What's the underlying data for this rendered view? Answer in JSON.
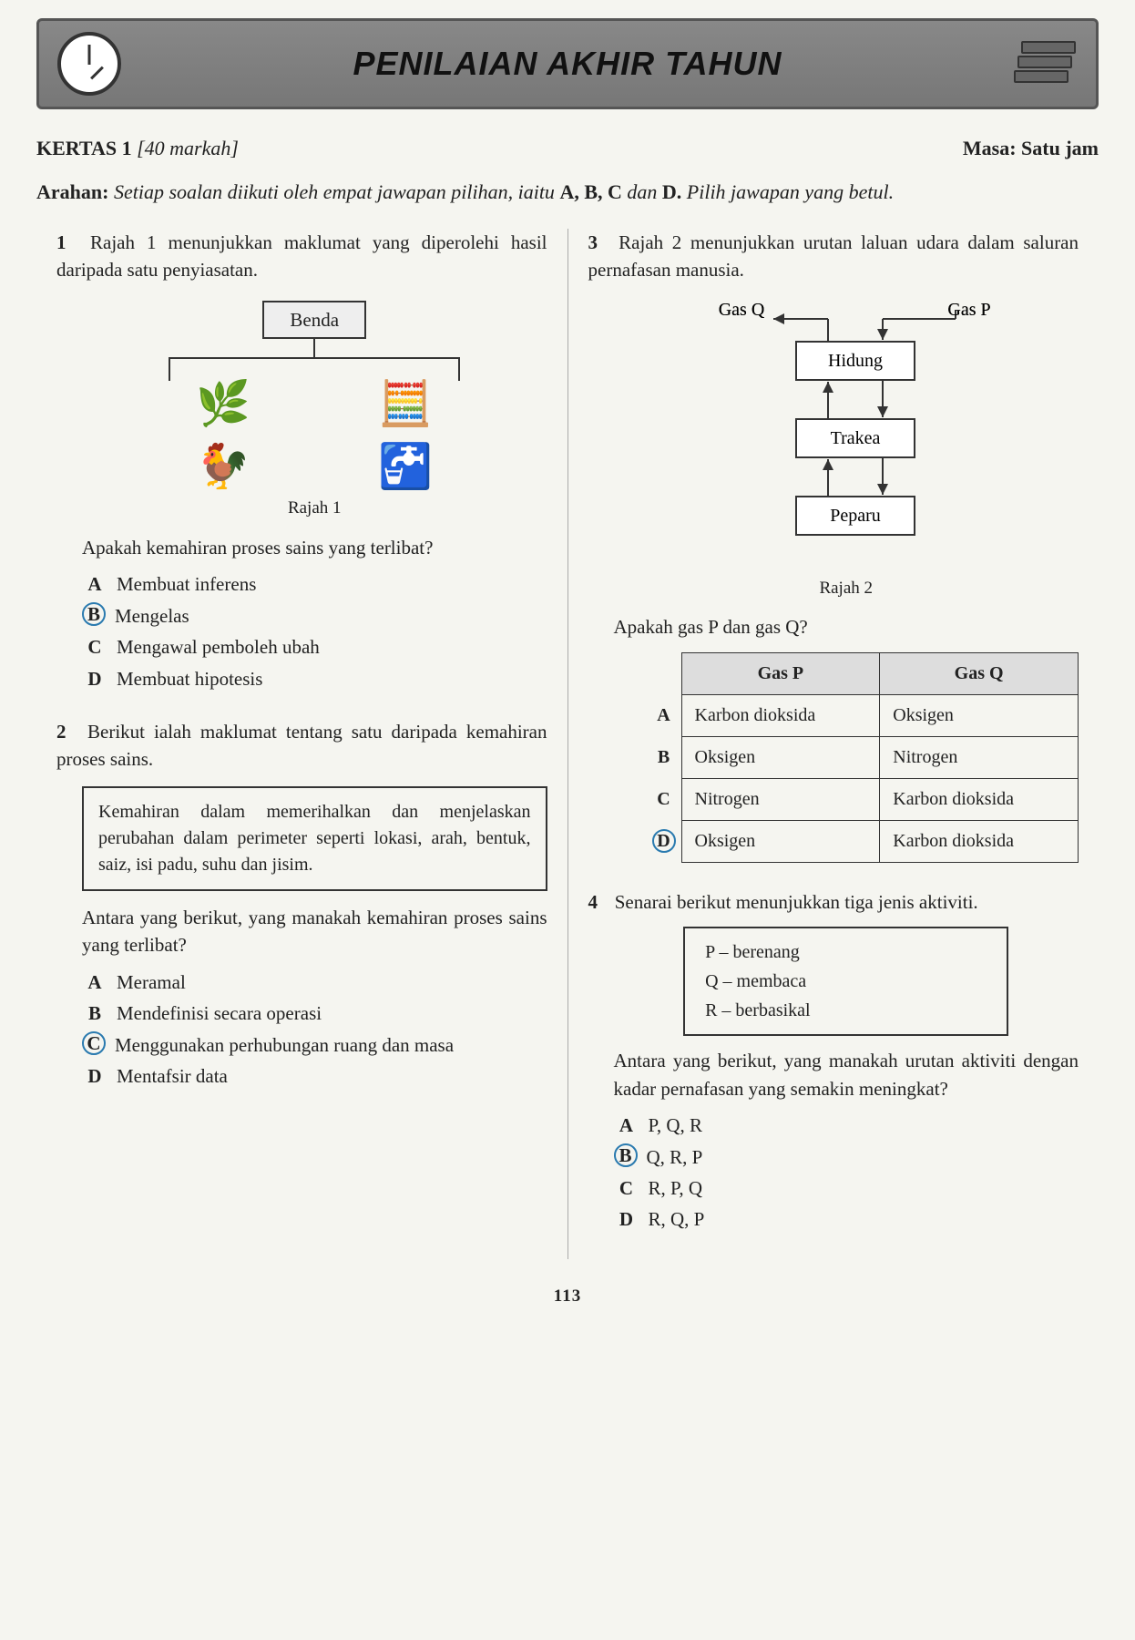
{
  "banner": {
    "title": "PENILAIAN AKHIR TAHUN"
  },
  "meta": {
    "paper": "KERTAS 1",
    "marks": "[40 markah]",
    "time_label": "Masa:",
    "time_value": "Satu jam"
  },
  "instructions": {
    "lead": "Arahan:",
    "text_before_letters": "Setiap soalan diikuti oleh empat jawapan pilihan, iaitu",
    "letters": "A, B, C",
    "and_word": "dan",
    "last_letter": "D",
    "tail": "Pilih jawapan yang betul."
  },
  "q1": {
    "num": "1",
    "text": "Rajah 1 menunjukkan maklumat yang diperolehi hasil daripada satu penyiasatan.",
    "benda_label": "Benda",
    "caption": "Rajah 1",
    "sub": "Apakah kemahiran proses sains yang terlibat?",
    "options": [
      {
        "l": "A",
        "t": "Membuat inferens",
        "circled": false
      },
      {
        "l": "B",
        "t": "Mengelas",
        "circled": true
      },
      {
        "l": "C",
        "t": "Mengawal pemboleh ubah",
        "circled": false
      },
      {
        "l": "D",
        "t": "Membuat hipotesis",
        "circled": false
      }
    ]
  },
  "q2": {
    "num": "2",
    "text": "Berikut ialah maklumat tentang satu daripada kemahiran proses sains.",
    "box": "Kemahiran dalam memerihalkan dan menjelaskan perubahan dalam perimeter seperti lokasi, arah, bentuk, saiz, isi padu, suhu dan jisim.",
    "sub": "Antara yang berikut, yang manakah kemahiran proses sains yang terlibat?",
    "options": [
      {
        "l": "A",
        "t": "Meramal",
        "circled": false
      },
      {
        "l": "B",
        "t": "Mendefinisi secara operasi",
        "circled": false
      },
      {
        "l": "C",
        "t": "Menggunakan perhubungan ruang dan masa",
        "circled": true
      },
      {
        "l": "D",
        "t": "Mentafsir data",
        "circled": false
      }
    ]
  },
  "q3": {
    "num": "3",
    "text": "Rajah 2 menunjukkan urutan laluan udara dalam saluran pernafasan manusia.",
    "flow": {
      "gas_q": "Gas Q",
      "gas_p": "Gas P",
      "nodes": [
        "Hidung",
        "Trakea",
        "Peparu"
      ],
      "box_stroke": "#333",
      "box_fill": "#fff",
      "font_size": 20
    },
    "caption": "Rajah 2",
    "sub": "Apakah gas P dan gas Q?",
    "table": {
      "headers": [
        "Gas P",
        "Gas Q"
      ],
      "rows": [
        {
          "l": "A",
          "p": "Karbon dioksida",
          "q": "Oksigen",
          "circled": false
        },
        {
          "l": "B",
          "p": "Oksigen",
          "q": "Nitrogen",
          "circled": false
        },
        {
          "l": "C",
          "p": "Nitrogen",
          "q": "Karbon dioksida",
          "circled": false
        },
        {
          "l": "D",
          "p": "Oksigen",
          "q": "Karbon dioksida",
          "circled": true
        }
      ]
    }
  },
  "q4": {
    "num": "4",
    "text": "Senarai berikut menunjukkan tiga jenis aktiviti.",
    "list": [
      "P – berenang",
      "Q – membaca",
      "R – berbasikal"
    ],
    "sub": "Antara yang berikut, yang manakah urutan aktiviti dengan kadar pernafasan yang semakin meningkat?",
    "options": [
      {
        "l": "A",
        "t": "P, Q, R",
        "circled": false
      },
      {
        "l": "B",
        "t": "Q, R, P",
        "circled": true
      },
      {
        "l": "C",
        "t": "R, P, Q",
        "circled": false
      },
      {
        "l": "D",
        "t": "R, Q, P",
        "circled": false
      }
    ]
  },
  "page_number": "113"
}
